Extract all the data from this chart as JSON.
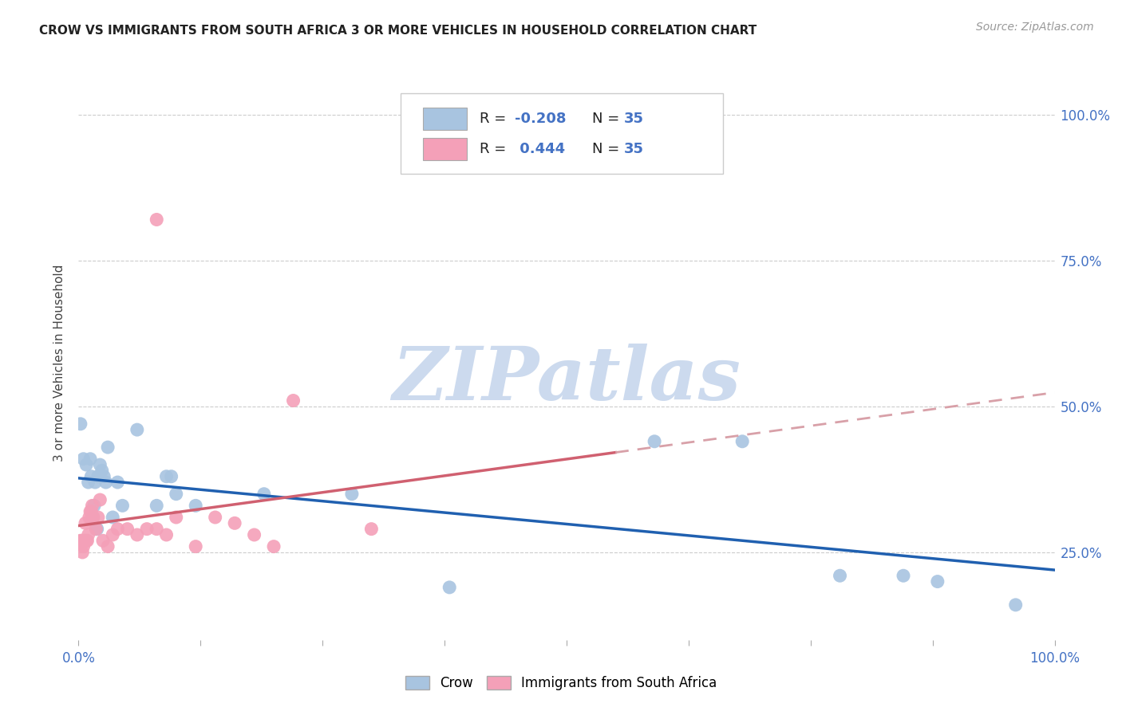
{
  "title": "CROW VS IMMIGRANTS FROM SOUTH AFRICA 3 OR MORE VEHICLES IN HOUSEHOLD CORRELATION CHART",
  "source": "Source: ZipAtlas.com",
  "ylabel": "3 or more Vehicles in Household",
  "crow_R": "-0.208",
  "crow_N": "35",
  "sa_R": "0.444",
  "sa_N": "35",
  "crow_color": "#a8c4e0",
  "sa_color": "#f4a0b8",
  "crow_line_color": "#2060b0",
  "sa_line_color_solid": "#d06070",
  "sa_line_color_dash": "#d8a0a8",
  "watermark_color": "#ccdaee",
  "background_color": "#ffffff",
  "grid_color": "#cccccc",
  "crow_points_x": [
    0.002,
    0.005,
    0.008,
    0.01,
    0.012,
    0.013,
    0.015,
    0.016,
    0.017,
    0.018,
    0.019,
    0.02,
    0.022,
    0.024,
    0.026,
    0.028,
    0.03,
    0.035,
    0.04,
    0.045,
    0.06,
    0.08,
    0.09,
    0.095,
    0.1,
    0.12,
    0.19,
    0.28,
    0.38,
    0.59,
    0.68,
    0.78,
    0.845,
    0.88,
    0.96
  ],
  "crow_points_y": [
    0.47,
    0.41,
    0.4,
    0.37,
    0.41,
    0.38,
    0.31,
    0.33,
    0.37,
    0.29,
    0.29,
    0.38,
    0.4,
    0.39,
    0.38,
    0.37,
    0.43,
    0.31,
    0.37,
    0.33,
    0.46,
    0.33,
    0.38,
    0.38,
    0.35,
    0.33,
    0.35,
    0.35,
    0.19,
    0.44,
    0.44,
    0.21,
    0.21,
    0.2,
    0.16
  ],
  "sa_points_x": [
    0.002,
    0.003,
    0.004,
    0.005,
    0.006,
    0.007,
    0.008,
    0.009,
    0.01,
    0.011,
    0.012,
    0.013,
    0.014,
    0.015,
    0.018,
    0.02,
    0.022,
    0.025,
    0.03,
    0.035,
    0.04,
    0.05,
    0.06,
    0.07,
    0.08,
    0.09,
    0.1,
    0.12,
    0.14,
    0.16,
    0.18,
    0.2,
    0.22,
    0.3,
    0.08
  ],
  "sa_points_y": [
    0.27,
    0.27,
    0.25,
    0.26,
    0.27,
    0.3,
    0.27,
    0.27,
    0.28,
    0.31,
    0.32,
    0.32,
    0.33,
    0.31,
    0.29,
    0.31,
    0.34,
    0.27,
    0.26,
    0.28,
    0.29,
    0.29,
    0.28,
    0.29,
    0.29,
    0.28,
    0.31,
    0.26,
    0.31,
    0.3,
    0.28,
    0.26,
    0.51,
    0.29,
    0.82
  ]
}
